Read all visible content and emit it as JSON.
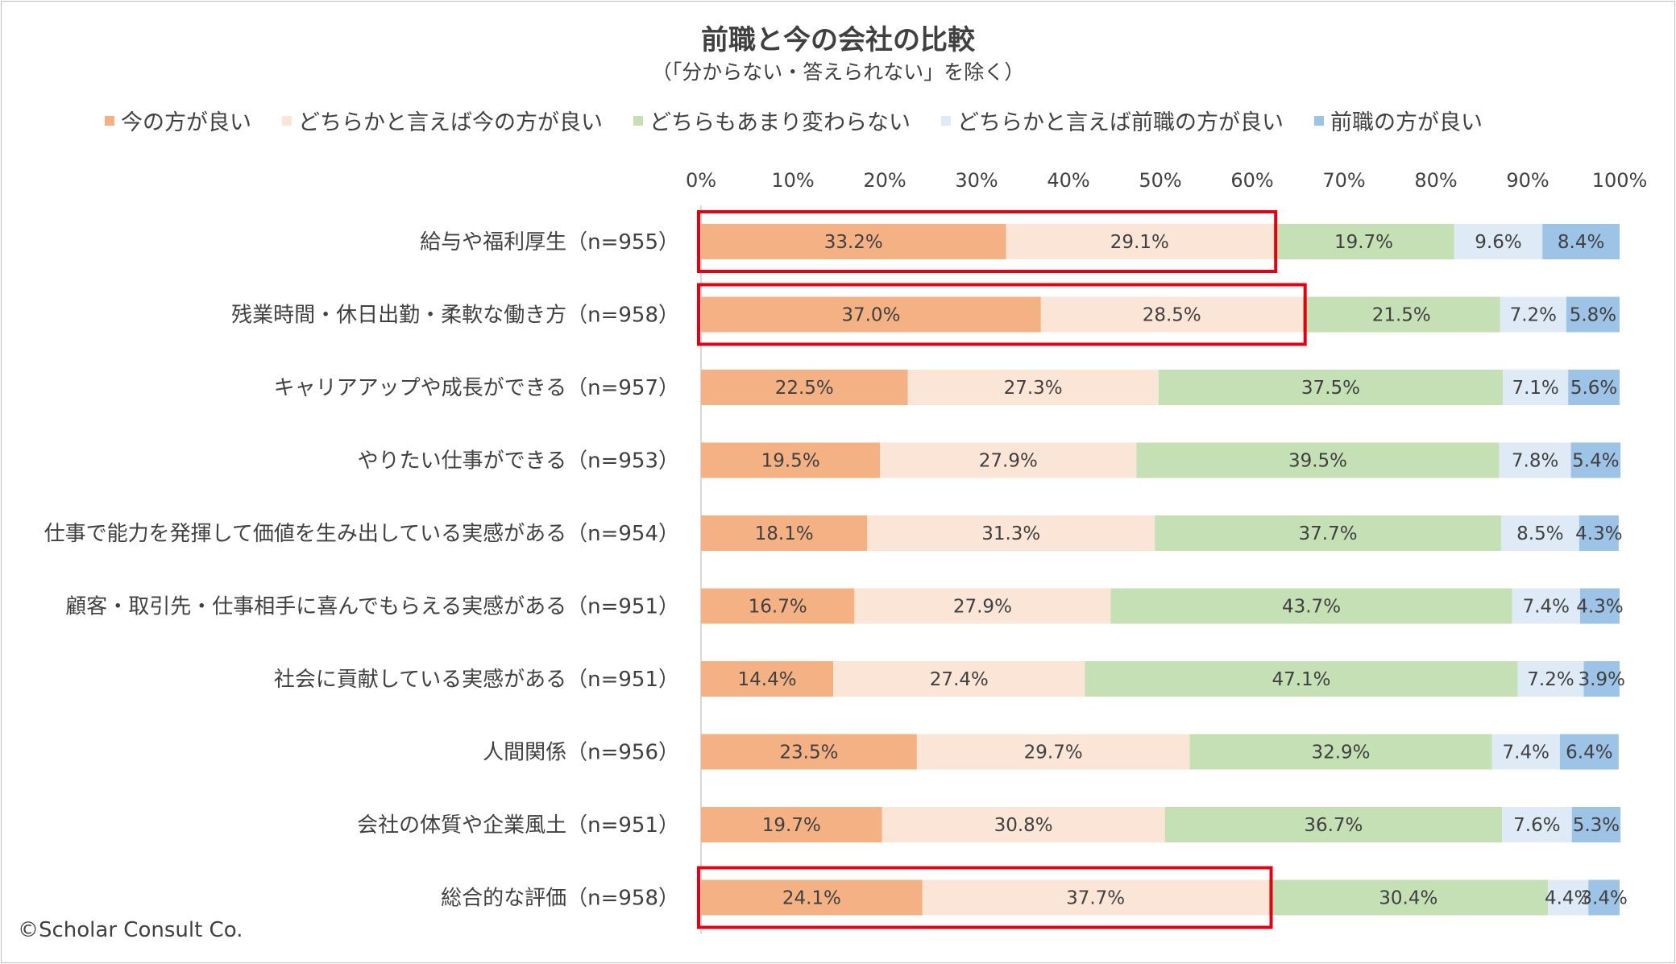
{
  "chart_data": {
    "type": "bar",
    "orientation": "horizontal",
    "stacked": true,
    "title": "前職と今の会社の比較",
    "subtitle": "（「分からない・答えられない」を除く）",
    "xlim": [
      0,
      100
    ],
    "x_ticks": [
      "0%",
      "10%",
      "20%",
      "30%",
      "40%",
      "50%",
      "60%",
      "70%",
      "80%",
      "90%",
      "100%"
    ],
    "legend_position": "top",
    "categories": [
      "給与や福利厚生（n=955）",
      "残業時間・休日出勤・柔軟な働き方（n=958）",
      "キャリアアップや成長ができる（n=957）",
      "やりたい仕事ができる（n=953）",
      "仕事で能力を発揮して価値を生み出している実感がある（n=954）",
      "顧客・取引先・仕事相手に喜んでもらえる実感がある（n=951）",
      "社会に貢献している実感がある（n=951）",
      "人間関係（n=956）",
      "会社の体質や企業風土（n=951）",
      "総合的な評価（n=958）"
    ],
    "series": [
      {
        "name": "今の方が良い",
        "color": "#f4b183",
        "values": [
          33.2,
          37.0,
          22.5,
          19.5,
          18.1,
          16.7,
          14.4,
          23.5,
          19.7,
          24.1
        ]
      },
      {
        "name": "どちらかと言えば今の方が良い",
        "color": "#fbe5d6",
        "values": [
          29.1,
          28.5,
          27.3,
          27.9,
          31.3,
          27.9,
          27.4,
          29.7,
          30.8,
          37.7
        ]
      },
      {
        "name": "どちらもあまり変わらない",
        "color": "#c5e0b4",
        "values": [
          19.7,
          21.5,
          37.5,
          39.5,
          37.7,
          43.7,
          47.1,
          32.9,
          36.7,
          30.4
        ]
      },
      {
        "name": "どちらかと言えば前職の方が良い",
        "color": "#deebf7",
        "values": [
          9.6,
          7.2,
          7.1,
          7.8,
          8.5,
          7.4,
          7.2,
          7.4,
          7.6,
          4.4
        ]
      },
      {
        "name": "前職の方が良い",
        "color": "#9dc3e6",
        "values": [
          8.4,
          5.8,
          5.6,
          5.4,
          4.3,
          4.3,
          3.9,
          6.4,
          5.3,
          3.4
        ]
      }
    ],
    "value_labels": [
      [
        "33.2%",
        "29.1%",
        "19.7%",
        "9.6%",
        "8.4%"
      ],
      [
        "37.0%",
        "28.5%",
        "21.5%",
        "7.2%",
        "5.8%"
      ],
      [
        "22.5%",
        "27.3%",
        "37.5%",
        "7.1%",
        "5.6%"
      ],
      [
        "19.5%",
        "27.9%",
        "39.5%",
        "7.8%",
        "5.4%"
      ],
      [
        "18.1%",
        "31.3%",
        "37.7%",
        "8.5%",
        "4.3%"
      ],
      [
        "16.7%",
        "27.9%",
        "43.7%",
        "7.4%",
        "4.3%"
      ],
      [
        "14.4%",
        "27.4%",
        "47.1%",
        "7.2%",
        "3.9%"
      ],
      [
        "23.5%",
        "29.7%",
        "32.9%",
        "7.4%",
        "6.4%"
      ],
      [
        "19.7%",
        "30.8%",
        "36.7%",
        "7.6%",
        "5.3%"
      ],
      [
        "24.1%",
        "37.7%",
        "30.4%",
        "4.4%",
        "3.4%"
      ]
    ],
    "highlighted_rows": [
      0,
      1,
      9
    ],
    "highlight_color": "#e60012"
  },
  "copyright": "©Scholar Consult Co."
}
